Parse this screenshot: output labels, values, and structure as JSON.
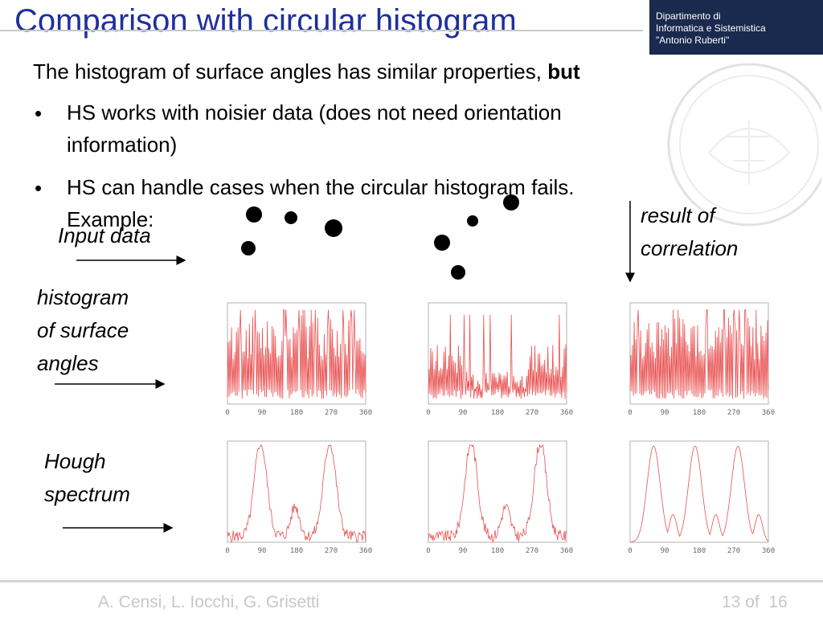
{
  "slide": {
    "title": "Comparison with circular histogram",
    "logo": {
      "line1": "Dipartimento di",
      "line2": "Informatica e Sistemistica",
      "line3": "\"Antonio Ruberti\""
    },
    "intro_text": "The histogram of surface angles has similar properties,",
    "intro_bold": "but",
    "bullets": [
      {
        "symbol": "•",
        "line1": "HS works with noisier data (does not need orientation",
        "line2": "information)"
      },
      {
        "symbol": "•",
        "line1": "HS can handle cases when the circular histogram fails.",
        "line2": "Example:"
      }
    ],
    "labels": {
      "input_data": "Input data",
      "result_line1": "result of",
      "result_line2": "correlation",
      "histogram_line1": "histogram",
      "histogram_line2": "of surface",
      "histogram_line3": "angles",
      "hough_line1": "Hough",
      "hough_line2": "spectrum"
    },
    "axis_ticks": [
      "0",
      "90",
      "180",
      "270",
      "360"
    ],
    "footer": {
      "authors": "A. Censi, L. Iocchi, G. Grisetti",
      "page": "13",
      "of": "of",
      "total": "16"
    }
  },
  "colors": {
    "title": "#1f2f9c",
    "plot_line": "#e85050",
    "plot_frame": "#b0b0b0",
    "tick_text": "#666666",
    "footer_text": "#c7c7c7"
  }
}
